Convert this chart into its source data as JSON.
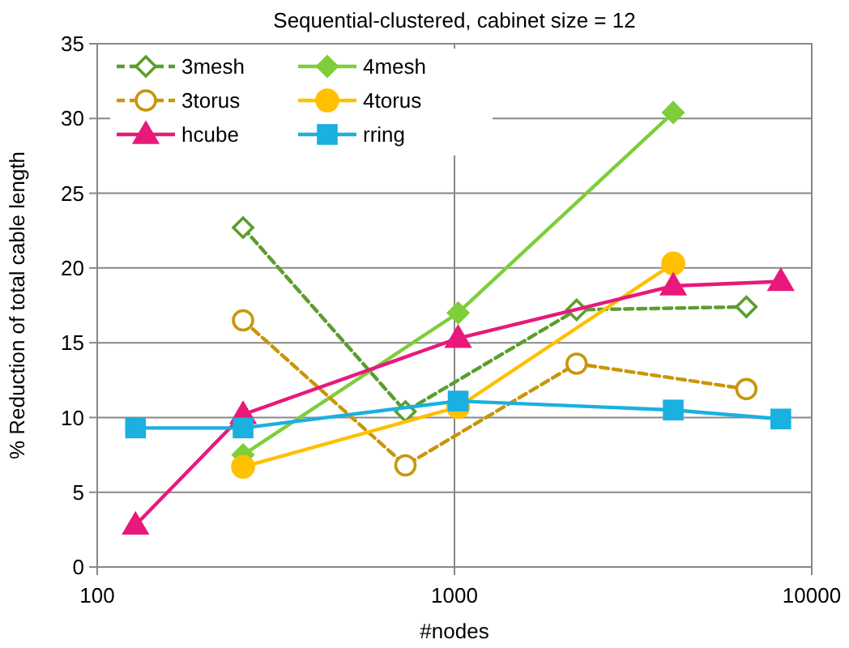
{
  "chart_data": {
    "type": "line",
    "title": "Sequential-clustered, cabinet size = 12",
    "xlabel": "#nodes",
    "ylabel": "% Reduction of total cable length",
    "log": "x",
    "xlim": [
      100,
      10000
    ],
    "xticks": [
      100,
      1000,
      10000
    ],
    "ylim": [
      0,
      35
    ],
    "yticks": [
      0,
      5,
      10,
      15,
      20,
      25,
      30,
      35
    ],
    "grid": true,
    "legend": "top left",
    "series": [
      {
        "name": "3mesh",
        "color": "#5a9e2e",
        "marker": "diamond",
        "line_style": "dashed",
        "x": [
          256,
          729,
          2197,
          6561
        ],
        "values": [
          22.7,
          10.4,
          17.2,
          17.4
        ]
      },
      {
        "name": "4mesh",
        "color": "#7dce3a",
        "marker": "diamond",
        "line_style": "solid",
        "x": [
          256,
          1024,
          4096
        ],
        "values": [
          7.5,
          17.0,
          30.4
        ]
      },
      {
        "name": "3torus",
        "color": "#c8960a",
        "marker": "circle",
        "line_style": "dashed",
        "x": [
          256,
          729,
          2197,
          6561
        ],
        "values": [
          16.5,
          6.8,
          13.6,
          11.9
        ]
      },
      {
        "name": "4torus",
        "color": "#ffc000",
        "marker": "circle",
        "line_style": "solid",
        "x": [
          256,
          1024,
          4096
        ],
        "values": [
          6.7,
          10.7,
          20.3
        ]
      },
      {
        "name": "hcube",
        "color": "#e8197a",
        "marker": "triangle",
        "line_style": "solid",
        "x": [
          128,
          256,
          1024,
          4096,
          8192
        ],
        "values": [
          2.8,
          10.2,
          15.3,
          18.8,
          19.1
        ]
      },
      {
        "name": "rring",
        "color": "#1ab0e0",
        "marker": "square",
        "line_style": "solid",
        "x": [
          128,
          256,
          1024,
          4096,
          8192
        ],
        "values": [
          9.3,
          9.3,
          11.1,
          10.5,
          9.9
        ]
      }
    ]
  }
}
